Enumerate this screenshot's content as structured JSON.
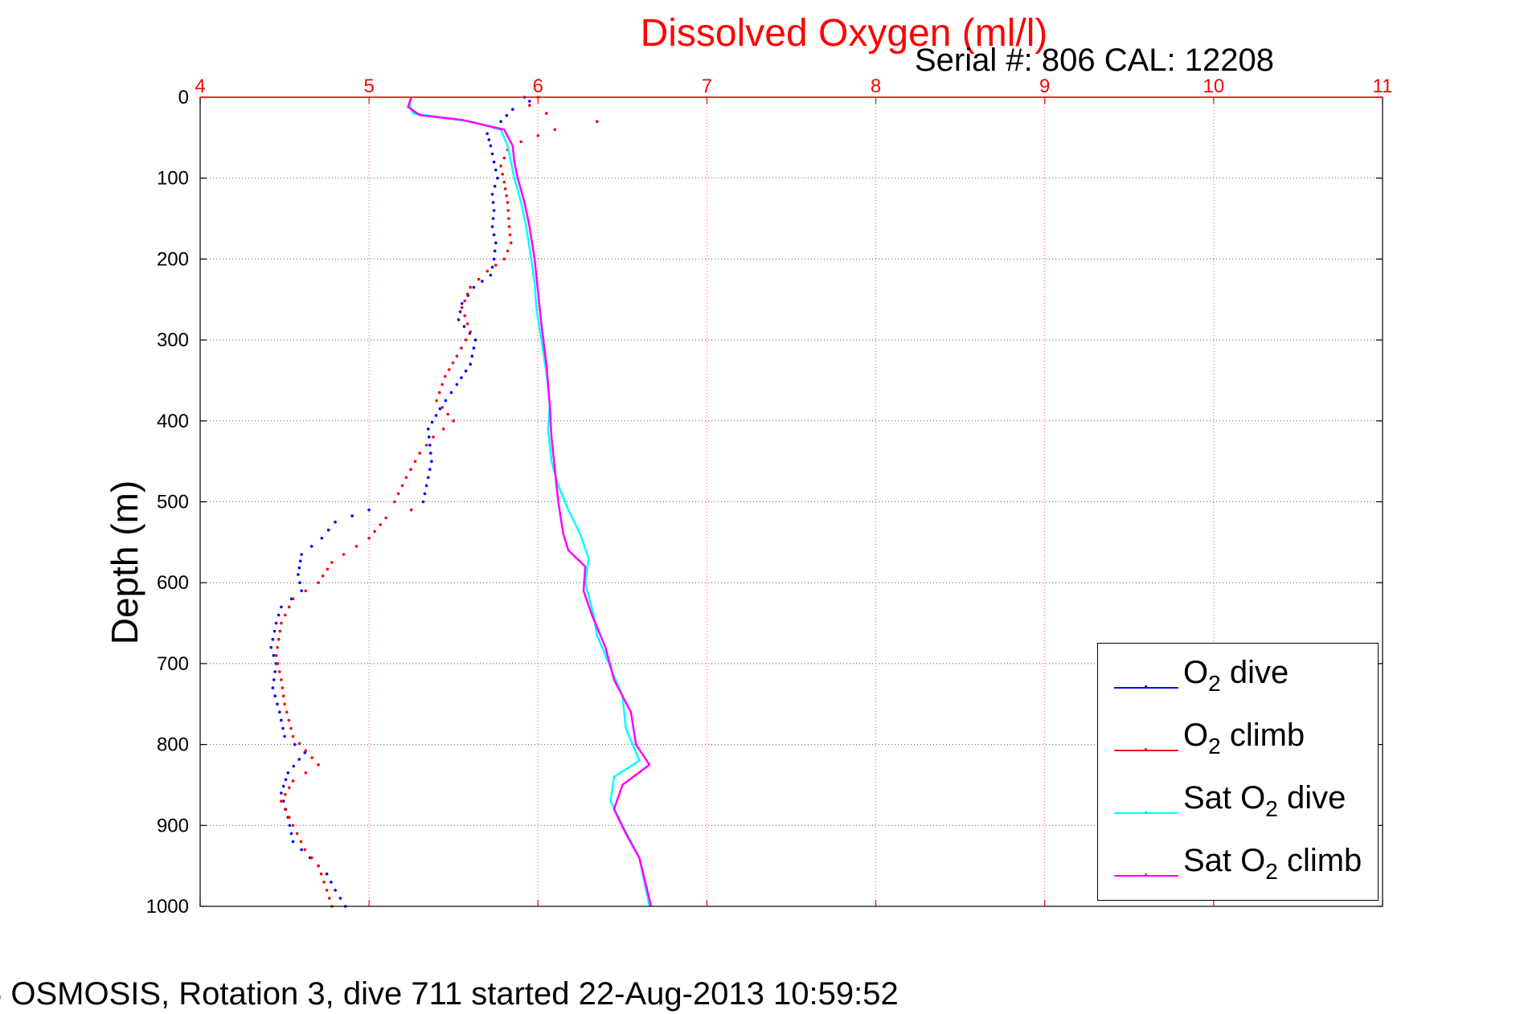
{
  "chart_data": {
    "type": "line",
    "title": "Dissolved Oxygen (ml/l)",
    "subtitle": "Serial #: 806  CAL: 12208",
    "ylabel": "Depth (m)",
    "xlabel": "",
    "caption": "6 OSMOSIS, Rotation 3, dive 711 started 22-Aug-2013 10:59:52",
    "xlim": [
      4,
      11
    ],
    "ylim": [
      1000,
      0
    ],
    "y_reversed": true,
    "x_ticks": [
      4,
      5,
      6,
      7,
      8,
      9,
      10,
      11
    ],
    "y_ticks": [
      0,
      100,
      200,
      300,
      400,
      500,
      600,
      700,
      800,
      900,
      1000
    ],
    "x_tick_color": "#ff0000",
    "grid": true,
    "legend_position": "bottom-right",
    "legend": [
      {
        "label": "O",
        "sub": "2",
        "suffix": " dive",
        "color": "#0000ff"
      },
      {
        "label": "O",
        "sub": "2",
        "suffix": " climb",
        "color": "#ff0000"
      },
      {
        "label": "Sat O",
        "sub": "2",
        "suffix": " dive",
        "color": "#00ffff"
      },
      {
        "label": "Sat O",
        "sub": "2",
        "suffix": " climb",
        "color": "#ff00ff"
      }
    ],
    "series": [
      {
        "name": "O2 dive",
        "style": "dots",
        "color": "#0000ff",
        "points": [
          [
            5.92,
            0
          ],
          [
            5.95,
            5
          ],
          [
            5.85,
            15
          ],
          [
            5.78,
            30
          ],
          [
            5.7,
            45
          ],
          [
            5.72,
            60
          ],
          [
            5.74,
            80
          ],
          [
            5.76,
            100
          ],
          [
            5.73,
            120
          ],
          [
            5.74,
            140
          ],
          [
            5.73,
            160
          ],
          [
            5.75,
            180
          ],
          [
            5.74,
            200
          ],
          [
            5.72,
            220
          ],
          [
            5.62,
            235
          ],
          [
            5.55,
            255
          ],
          [
            5.53,
            275
          ],
          [
            5.63,
            300
          ],
          [
            5.6,
            330
          ],
          [
            5.52,
            355
          ],
          [
            5.42,
            385
          ],
          [
            5.35,
            410
          ],
          [
            5.37,
            450
          ],
          [
            5.34,
            480
          ],
          [
            5.32,
            500
          ],
          [
            5.0,
            510
          ],
          [
            4.8,
            525
          ],
          [
            4.72,
            545
          ],
          [
            4.6,
            565
          ],
          [
            4.58,
            590
          ],
          [
            4.6,
            610
          ],
          [
            4.48,
            630
          ],
          [
            4.45,
            650
          ],
          [
            4.42,
            680
          ],
          [
            4.45,
            700
          ],
          [
            4.43,
            730
          ],
          [
            4.47,
            760
          ],
          [
            4.5,
            790
          ],
          [
            4.62,
            810
          ],
          [
            4.52,
            835
          ],
          [
            4.48,
            860
          ],
          [
            4.52,
            890
          ],
          [
            4.55,
            920
          ],
          [
            4.65,
            940
          ],
          [
            4.75,
            960
          ],
          [
            4.8,
            980
          ],
          [
            4.86,
            1000
          ]
        ]
      },
      {
        "name": "O2 climb",
        "style": "dots",
        "color": "#ff0000",
        "points": [
          [
            6.0,
            0
          ],
          [
            5.95,
            10
          ],
          [
            6.05,
            20
          ],
          [
            6.35,
            30
          ],
          [
            6.1,
            40
          ],
          [
            5.9,
            55
          ],
          [
            5.82,
            65
          ],
          [
            5.78,
            85
          ],
          [
            5.8,
            105
          ],
          [
            5.82,
            130
          ],
          [
            5.83,
            160
          ],
          [
            5.84,
            180
          ],
          [
            5.8,
            200
          ],
          [
            5.7,
            215
          ],
          [
            5.6,
            235
          ],
          [
            5.55,
            260
          ],
          [
            5.6,
            290
          ],
          [
            5.52,
            320
          ],
          [
            5.45,
            345
          ],
          [
            5.4,
            375
          ],
          [
            5.5,
            400
          ],
          [
            5.38,
            420
          ],
          [
            5.3,
            440
          ],
          [
            5.22,
            470
          ],
          [
            5.15,
            500
          ],
          [
            5.25,
            510
          ],
          [
            5.1,
            520
          ],
          [
            5.0,
            545
          ],
          [
            4.85,
            565
          ],
          [
            4.78,
            575
          ],
          [
            4.7,
            600
          ],
          [
            4.55,
            620
          ],
          [
            4.48,
            650
          ],
          [
            4.45,
            690
          ],
          [
            4.48,
            720
          ],
          [
            4.5,
            750
          ],
          [
            4.55,
            790
          ],
          [
            4.7,
            825
          ],
          [
            4.55,
            845
          ],
          [
            4.48,
            870
          ],
          [
            4.55,
            900
          ],
          [
            4.62,
            930
          ],
          [
            4.7,
            950
          ],
          [
            4.75,
            980
          ],
          [
            4.78,
            1000
          ]
        ]
      },
      {
        "name": "Sat O2 dive",
        "style": "line",
        "color": "#00ffff",
        "points": [
          [
            5.25,
            0
          ],
          [
            5.24,
            10
          ],
          [
            5.26,
            20
          ],
          [
            5.6,
            30
          ],
          [
            5.78,
            40
          ],
          [
            5.82,
            60
          ],
          [
            5.84,
            80
          ],
          [
            5.86,
            100
          ],
          [
            5.9,
            130
          ],
          [
            5.93,
            160
          ],
          [
            5.96,
            200
          ],
          [
            5.98,
            230
          ],
          [
            5.99,
            260
          ],
          [
            6.02,
            300
          ],
          [
            6.05,
            340
          ],
          [
            6.07,
            380
          ],
          [
            6.06,
            410
          ],
          [
            6.08,
            450
          ],
          [
            6.12,
            480
          ],
          [
            6.18,
            510
          ],
          [
            6.25,
            540
          ],
          [
            6.3,
            570
          ],
          [
            6.28,
            600
          ],
          [
            6.33,
            640
          ],
          [
            6.35,
            665
          ],
          [
            6.42,
            700
          ],
          [
            6.5,
            740
          ],
          [
            6.52,
            780
          ],
          [
            6.6,
            820
          ],
          [
            6.45,
            840
          ],
          [
            6.43,
            870
          ],
          [
            6.5,
            900
          ],
          [
            6.6,
            940
          ],
          [
            6.66,
            1000
          ]
        ]
      },
      {
        "name": "Sat O2 climb",
        "style": "line",
        "color": "#ff00ff",
        "points": [
          [
            5.25,
            0
          ],
          [
            5.23,
            12
          ],
          [
            5.3,
            22
          ],
          [
            5.55,
            28
          ],
          [
            5.8,
            40
          ],
          [
            5.85,
            60
          ],
          [
            5.86,
            80
          ],
          [
            5.88,
            100
          ],
          [
            5.92,
            130
          ],
          [
            5.95,
            160
          ],
          [
            5.98,
            200
          ],
          [
            6.0,
            240
          ],
          [
            6.02,
            280
          ],
          [
            6.05,
            330
          ],
          [
            6.07,
            380
          ],
          [
            6.08,
            420
          ],
          [
            6.1,
            460
          ],
          [
            6.12,
            500
          ],
          [
            6.15,
            540
          ],
          [
            6.18,
            560
          ],
          [
            6.28,
            580
          ],
          [
            6.27,
            610
          ],
          [
            6.32,
            640
          ],
          [
            6.4,
            680
          ],
          [
            6.45,
            720
          ],
          [
            6.55,
            760
          ],
          [
            6.58,
            800
          ],
          [
            6.66,
            825
          ],
          [
            6.5,
            850
          ],
          [
            6.45,
            880
          ],
          [
            6.52,
            910
          ],
          [
            6.6,
            940
          ],
          [
            6.67,
            1000
          ]
        ]
      }
    ]
  }
}
